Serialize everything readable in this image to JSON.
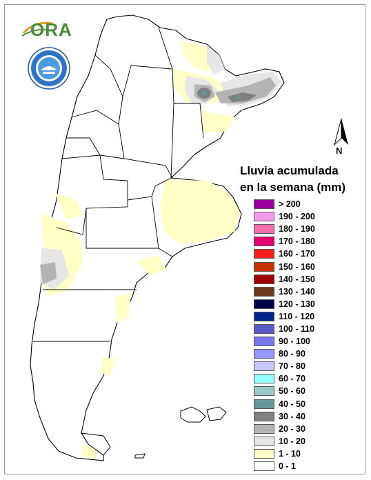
{
  "logo": {
    "ora_text": "ORA"
  },
  "north_arrow": {
    "label": "N"
  },
  "legend": {
    "title_line1": "Lluvia acumulada",
    "title_line2": "en la semana (mm)",
    "items": [
      {
        "label": "> 200",
        "color": "#9b009b"
      },
      {
        "label": "190 - 200",
        "color": "#f598f0"
      },
      {
        "label": "180 - 190",
        "color": "#f56fa8"
      },
      {
        "label": "170 - 180",
        "color": "#e6006e"
      },
      {
        "label": "160 - 170",
        "color": "#ff1e1e"
      },
      {
        "label": "150 - 160",
        "color": "#c83200"
      },
      {
        "label": "140 - 150",
        "color": "#a00000"
      },
      {
        "label": "130 - 140",
        "color": "#6b3a1e"
      },
      {
        "label": "120 - 130",
        "color": "#00004b"
      },
      {
        "label": "110 - 120",
        "color": "#00238c"
      },
      {
        "label": "100 - 110",
        "color": "#5a5ac8"
      },
      {
        "label": "90 - 100",
        "color": "#7878f0"
      },
      {
        "label": "80 - 90",
        "color": "#9696ff"
      },
      {
        "label": "70 - 80",
        "color": "#c8c8ff"
      },
      {
        "label": "60 - 70",
        "color": "#96ffff"
      },
      {
        "label": "50 - 60",
        "color": "#96c8c8"
      },
      {
        "label": "40 - 50",
        "color": "#649696"
      },
      {
        "label": "30 - 40",
        "color": "#808080"
      },
      {
        "label": "20 - 30",
        "color": "#b4b4b4"
      },
      {
        "label": "10 - 20",
        "color": "#e6e6e6"
      },
      {
        "label": "1 - 10",
        "color": "#ffffc8"
      },
      {
        "label": "0 - 1",
        "color": "#ffffff"
      }
    ]
  }
}
